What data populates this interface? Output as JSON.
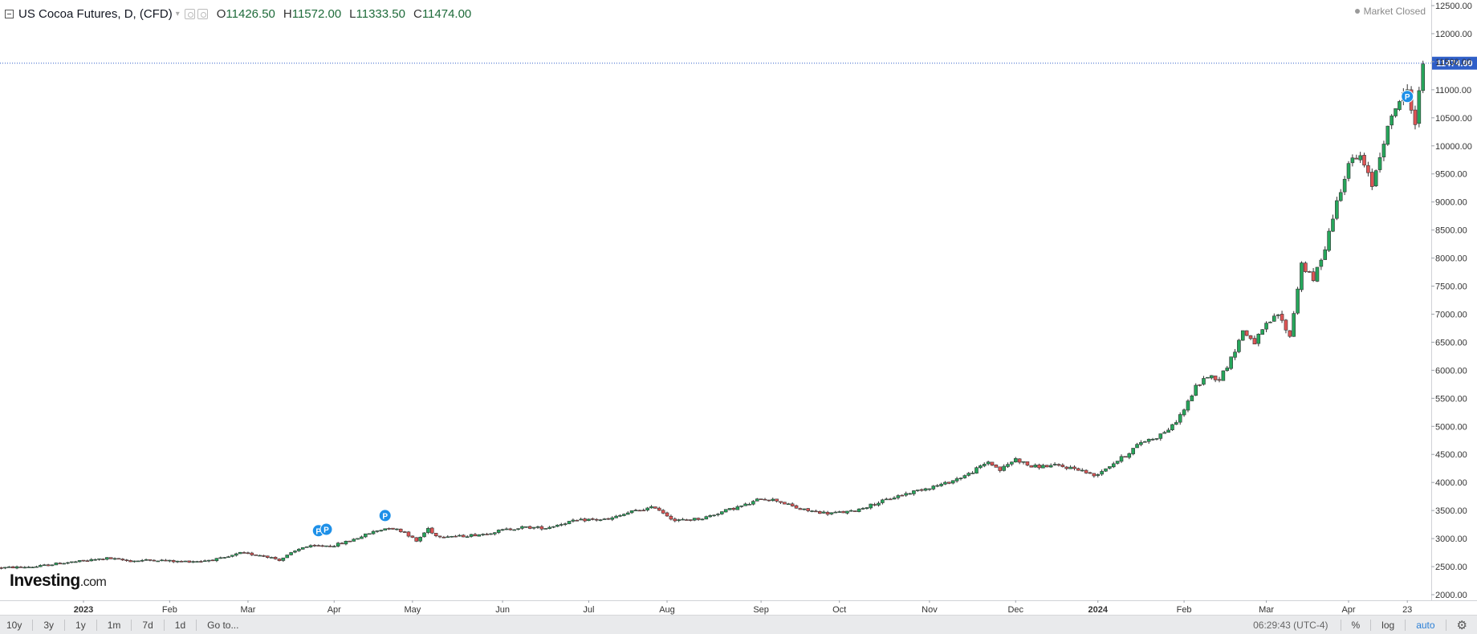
{
  "header": {
    "title": "US Cocoa Futures, D, (CFD)",
    "ohlc": [
      {
        "k": "O",
        "v": "11426.50"
      },
      {
        "k": "H",
        "v": "11572.00"
      },
      {
        "k": "L",
        "v": "11333.50"
      },
      {
        "k": "C",
        "v": "11474.00"
      }
    ]
  },
  "market_status": "Market Closed",
  "logo": {
    "main": "Investing",
    "suffix": ".com"
  },
  "footer": {
    "ranges": [
      "10y",
      "3y",
      "1y",
      "1m",
      "7d",
      "1d"
    ],
    "goto": "Go to...",
    "clock": "06:29:43 (UTC-4)",
    "percent": "%",
    "log": "log",
    "auto": "auto"
  },
  "colors": {
    "up": "#26a65b",
    "down": "#e05555",
    "last_price": "#2f5fc8",
    "marker": "#1e90e8"
  },
  "chart_data": {
    "type": "candlestick",
    "title": "US Cocoa Futures, D, (CFD)",
    "last_price": 11474.0,
    "last_price_label": "11474.00",
    "ylim": [
      1950,
      12560
    ],
    "y_ticks": [
      2000,
      2500,
      3000,
      3500,
      4000,
      4500,
      5000,
      5500,
      6000,
      6500,
      7000,
      7500,
      8000,
      8500,
      9000,
      9500,
      10000,
      10500,
      11000,
      11500,
      12000,
      12500
    ],
    "x_ticks": [
      {
        "label": "2023",
        "bold": true,
        "day": 0
      },
      {
        "label": "Feb",
        "bold": false,
        "day": 22
      },
      {
        "label": "Mar",
        "bold": false,
        "day": 42
      },
      {
        "label": "Apr",
        "bold": false,
        "day": 64
      },
      {
        "label": "May",
        "bold": false,
        "day": 84
      },
      {
        "label": "Jun",
        "bold": false,
        "day": 107
      },
      {
        "label": "Jul",
        "bold": false,
        "day": 129
      },
      {
        "label": "Aug",
        "bold": false,
        "day": 149
      },
      {
        "label": "Sep",
        "bold": false,
        "day": 173
      },
      {
        "label": "Oct",
        "bold": false,
        "day": 193
      },
      {
        "label": "Nov",
        "bold": false,
        "day": 216
      },
      {
        "label": "Dec",
        "bold": false,
        "day": 238
      },
      {
        "label": "2024",
        "bold": true,
        "day": 259
      },
      {
        "label": "Feb",
        "bold": false,
        "day": 281
      },
      {
        "label": "Mar",
        "bold": false,
        "day": 302
      },
      {
        "label": "Apr",
        "bold": false,
        "day": 323
      },
      {
        "label": "23",
        "bold": false,
        "day": 338
      }
    ],
    "price_path": [
      [
        -21,
        2480
      ],
      [
        -12,
        2500
      ],
      [
        -6,
        2560
      ],
      [
        0,
        2600
      ],
      [
        6,
        2650
      ],
      [
        12,
        2600
      ],
      [
        18,
        2620
      ],
      [
        24,
        2590
      ],
      [
        30,
        2600
      ],
      [
        36,
        2650
      ],
      [
        40,
        2740
      ],
      [
        46,
        2700
      ],
      [
        50,
        2620
      ],
      [
        56,
        2850
      ],
      [
        64,
        2880
      ],
      [
        68,
        2960
      ],
      [
        74,
        3120
      ],
      [
        78,
        3200
      ],
      [
        82,
        3120
      ],
      [
        85,
        2950
      ],
      [
        88,
        3180
      ],
      [
        90,
        3050
      ],
      [
        96,
        3040
      ],
      [
        102,
        3080
      ],
      [
        107,
        3150
      ],
      [
        112,
        3200
      ],
      [
        118,
        3190
      ],
      [
        124,
        3300
      ],
      [
        129,
        3340
      ],
      [
        134,
        3340
      ],
      [
        140,
        3480
      ],
      [
        146,
        3560
      ],
      [
        151,
        3320
      ],
      [
        158,
        3360
      ],
      [
        164,
        3500
      ],
      [
        170,
        3620
      ],
      [
        173,
        3720
      ],
      [
        177,
        3680
      ],
      [
        183,
        3520
      ],
      [
        190,
        3450
      ],
      [
        196,
        3480
      ],
      [
        202,
        3620
      ],
      [
        208,
        3760
      ],
      [
        214,
        3880
      ],
      [
        220,
        3980
      ],
      [
        226,
        4150
      ],
      [
        231,
        4370
      ],
      [
        234,
        4220
      ],
      [
        238,
        4420
      ],
      [
        242,
        4280
      ],
      [
        248,
        4300
      ],
      [
        254,
        4240
      ],
      [
        258,
        4120
      ],
      [
        262,
        4300
      ],
      [
        266,
        4480
      ],
      [
        270,
        4720
      ],
      [
        274,
        4810
      ],
      [
        278,
        5000
      ],
      [
        281,
        5300
      ],
      [
        284,
        5700
      ],
      [
        287,
        5900
      ],
      [
        290,
        5850
      ],
      [
        293,
        6200
      ],
      [
        296,
        6700
      ],
      [
        299,
        6500
      ],
      [
        302,
        6800
      ],
      [
        305,
        7000
      ],
      [
        308,
        6600
      ],
      [
        311,
        7900
      ],
      [
        314,
        7600
      ],
      [
        317,
        8200
      ],
      [
        320,
        9000
      ],
      [
        323,
        9700
      ],
      [
        326,
        9800
      ],
      [
        329,
        9300
      ],
      [
        332,
        10100
      ],
      [
        335,
        10700
      ],
      [
        338,
        11000
      ],
      [
        340,
        10400
      ],
      [
        342,
        11474
      ]
    ],
    "markers": [
      {
        "label": "P",
        "day": 60,
        "price": 3140
      },
      {
        "label": "P",
        "day": 62,
        "price": 3165
      },
      {
        "label": "P",
        "day": 77,
        "price": 3410
      },
      {
        "label": "P",
        "day": 338,
        "price": 10880
      }
    ]
  }
}
